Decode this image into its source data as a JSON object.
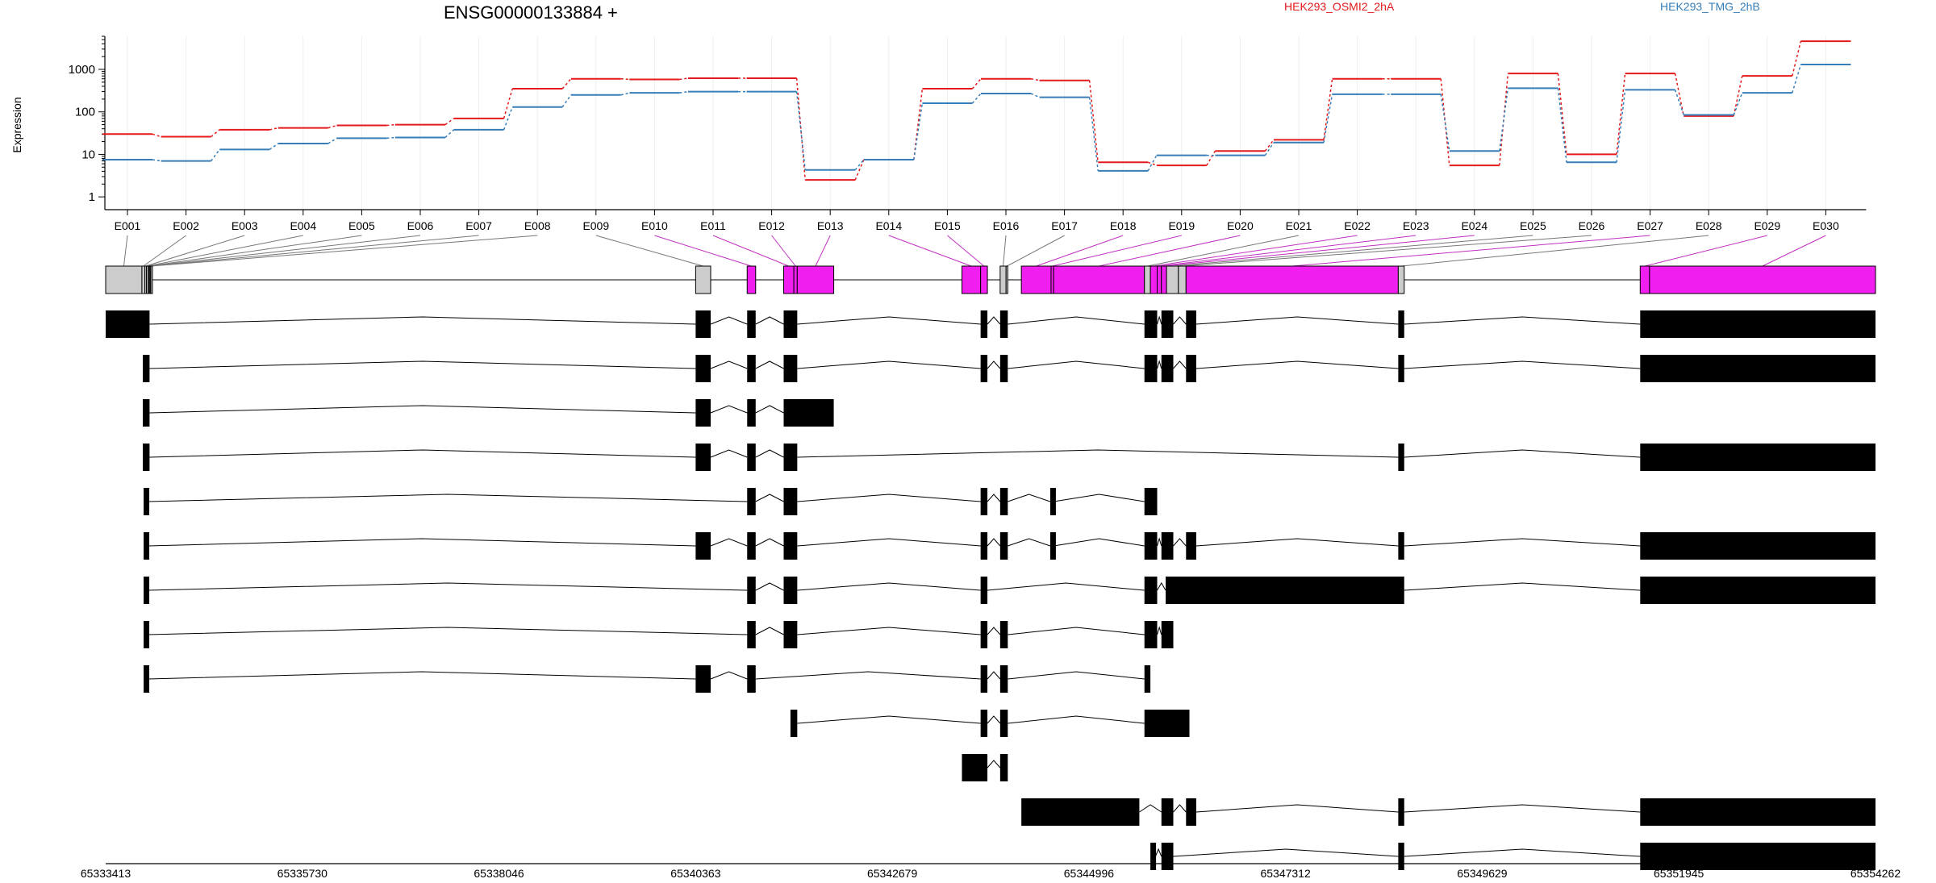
{
  "chart_data": {
    "type": "line",
    "title": "ENSG00000133884 +",
    "ylabel": "Expression",
    "yscale": "log",
    "ylim": [
      0.5,
      6000
    ],
    "yticks": [
      1,
      10,
      100,
      1000
    ],
    "ytick_labels": [
      "1",
      "10",
      "100",
      "1000"
    ],
    "grid": true,
    "legend_placement": "top-right",
    "exons": [
      "E001",
      "E002",
      "E003",
      "E004",
      "E005",
      "E006",
      "E007",
      "E008",
      "E009",
      "E010",
      "E011",
      "E012",
      "E013",
      "E014",
      "E015",
      "E016",
      "E017",
      "E018",
      "E019",
      "E020",
      "E021",
      "E022",
      "E023",
      "E024",
      "E025",
      "E026",
      "E027",
      "E028",
      "E029",
      "E030"
    ],
    "series": [
      {
        "name": "HEK293_OSMI2_2hA",
        "color": "#e41a1c",
        "values": [
          30,
          26,
          38,
          42,
          48,
          50,
          70,
          350,
          600,
          580,
          620,
          620,
          2.5,
          7.5,
          350,
          600,
          550,
          6.5,
          5.5,
          12,
          22,
          600,
          600,
          5.5,
          800,
          10,
          800,
          80,
          700,
          4600
        ]
      },
      {
        "name": "HEK293_TMG_2hB",
        "color": "#377eb8",
        "values": [
          7.5,
          7,
          13,
          18,
          24,
          25,
          38,
          130,
          250,
          280,
          300,
          300,
          4.3,
          7.5,
          160,
          270,
          220,
          4.1,
          9.5,
          9.5,
          19,
          260,
          260,
          12,
          360,
          6.5,
          330,
          85,
          280,
          1300
        ]
      }
    ],
    "genome_axis": {
      "range": [
        65333413,
        65354262
      ],
      "tick_labels": [
        "65333413",
        "65335730",
        "65338046",
        "65340363",
        "65342679",
        "65344996",
        "65347312",
        "65349629",
        "65351945",
        "65354262"
      ]
    },
    "gene_model": {
      "exons": [
        {
          "id": "E001",
          "start": 65333413,
          "end": 65333840,
          "sig": false
        },
        {
          "id": "E002",
          "start": 65333840,
          "end": 65333875,
          "sig": false
        },
        {
          "id": "E003",
          "start": 65333875,
          "end": 65333893,
          "sig": false
        },
        {
          "id": "E004",
          "start": 65333893,
          "end": 65333913,
          "sig": false
        },
        {
          "id": "E005",
          "start": 65333913,
          "end": 65333925,
          "sig": false
        },
        {
          "id": "E006",
          "start": 65333925,
          "end": 65333935,
          "sig": false
        },
        {
          "id": "E007",
          "start": 65333935,
          "end": 65333945,
          "sig": false
        },
        {
          "id": "E008",
          "start": 65333945,
          "end": 65333955,
          "sig": false
        },
        {
          "id": "E009",
          "start": 65340363,
          "end": 65340540,
          "sig": false
        },
        {
          "id": "E010",
          "start": 65340970,
          "end": 65341070,
          "sig": true
        },
        {
          "id": "E011",
          "start": 65341400,
          "end": 65341520,
          "sig": true
        },
        {
          "id": "E012",
          "start": 65341520,
          "end": 65341560,
          "sig": true
        },
        {
          "id": "E013",
          "start": 65341560,
          "end": 65341990,
          "sig": true
        },
        {
          "id": "E014",
          "start": 65343500,
          "end": 65343720,
          "sig": true
        },
        {
          "id": "E015",
          "start": 65343720,
          "end": 65343800,
          "sig": true
        },
        {
          "id": "E016",
          "start": 65343950,
          "end": 65344020,
          "sig": false
        },
        {
          "id": "E017",
          "start": 65344020,
          "end": 65344040,
          "sig": false
        },
        {
          "id": "E018",
          "start": 65344200,
          "end": 65344550,
          "sig": true
        },
        {
          "id": "E019",
          "start": 65344550,
          "end": 65344580,
          "sig": true
        },
        {
          "id": "E020",
          "start": 65344580,
          "end": 65345650,
          "sig": true
        },
        {
          "id": "E021",
          "start": 65345650,
          "end": 65345720,
          "sig": false
        },
        {
          "id": "E022",
          "start": 65345720,
          "end": 65345800,
          "sig": true
        },
        {
          "id": "E023",
          "start": 65345800,
          "end": 65345850,
          "sig": true
        },
        {
          "id": "E024",
          "start": 65345850,
          "end": 65345910,
          "sig": true
        },
        {
          "id": "E025",
          "start": 65345910,
          "end": 65346050,
          "sig": false
        },
        {
          "id": "E026",
          "start": 65346050,
          "end": 65346140,
          "sig": false
        },
        {
          "id": "E027",
          "start": 65346140,
          "end": 65348640,
          "sig": true
        },
        {
          "id": "E028",
          "start": 65348640,
          "end": 65348710,
          "sig": false
        },
        {
          "id": "E029",
          "start": 65351490,
          "end": 65351600,
          "sig": true
        },
        {
          "id": "E030",
          "start": 65351600,
          "end": 65354262,
          "sig": true
        }
      ],
      "transcripts": [
        [
          [
            65333413,
            65333930
          ],
          [
            65340363,
            65340540
          ],
          [
            65340970,
            65341070
          ],
          [
            65341400,
            65341560
          ],
          [
            65343720,
            65343800
          ],
          [
            65343950,
            65344040
          ],
          [
            65345650,
            65345800
          ],
          [
            65345850,
            65345990
          ],
          [
            65346140,
            65346260
          ],
          [
            65348640,
            65348710
          ],
          [
            65351490,
            65354262
          ]
        ],
        [
          [
            65333850,
            65333930
          ],
          [
            65340363,
            65340540
          ],
          [
            65340970,
            65341070
          ],
          [
            65341400,
            65341560
          ],
          [
            65343720,
            65343800
          ],
          [
            65343950,
            65344040
          ],
          [
            65345650,
            65345800
          ],
          [
            65345850,
            65345990
          ],
          [
            65346140,
            65346260
          ],
          [
            65348640,
            65348710
          ],
          [
            65351490,
            65354262
          ]
        ],
        [
          [
            65333850,
            65333930
          ],
          [
            65340363,
            65340540
          ],
          [
            65340970,
            65341070
          ],
          [
            65341400,
            65341990
          ]
        ],
        [
          [
            65333850,
            65333930
          ],
          [
            65340363,
            65340540
          ],
          [
            65340970,
            65341070
          ],
          [
            65341400,
            65341560
          ],
          [
            65348640,
            65348710
          ],
          [
            65351490,
            65354262
          ]
        ],
        [
          [
            65333860,
            65333910
          ],
          [
            65340970,
            65341070
          ],
          [
            65341400,
            65341560
          ],
          [
            65343720,
            65343800
          ],
          [
            65343950,
            65344040
          ],
          [
            65344540,
            65344580
          ],
          [
            65345650,
            65345800
          ]
        ],
        [
          [
            65333860,
            65333910
          ],
          [
            65340363,
            65340540
          ],
          [
            65340970,
            65341070
          ],
          [
            65341400,
            65341560
          ],
          [
            65343720,
            65343800
          ],
          [
            65343950,
            65344040
          ],
          [
            65344540,
            65344580
          ],
          [
            65345650,
            65345800
          ],
          [
            65345850,
            65345990
          ],
          [
            65346140,
            65346260
          ],
          [
            65348640,
            65348710
          ],
          [
            65351490,
            65354262
          ]
        ],
        [
          [
            65333860,
            65333910
          ],
          [
            65340970,
            65341070
          ],
          [
            65341400,
            65341560
          ],
          [
            65343720,
            65343800
          ],
          [
            65345650,
            65345800
          ],
          [
            65345900,
            65348710
          ],
          [
            65351490,
            65354262
          ]
        ],
        [
          [
            65333860,
            65333910
          ],
          [
            65340970,
            65341070
          ],
          [
            65341400,
            65341560
          ],
          [
            65343720,
            65343800
          ],
          [
            65343950,
            65344040
          ],
          [
            65345650,
            65345800
          ],
          [
            65345850,
            65345990
          ]
        ],
        [
          [
            65333860,
            65333910
          ],
          [
            65340363,
            65340540
          ],
          [
            65340970,
            65341070
          ],
          [
            65343720,
            65343800
          ],
          [
            65343950,
            65344040
          ],
          [
            65345650,
            65345720
          ]
        ],
        [
          [
            65341480,
            65341560
          ],
          [
            65343720,
            65343800
          ],
          [
            65343950,
            65344040
          ],
          [
            65345650,
            65346180
          ]
        ],
        [
          [
            65343500,
            65343800
          ],
          [
            65343950,
            65344040
          ]
        ],
        [
          [
            65344200,
            65345590
          ],
          [
            65345850,
            65345990
          ],
          [
            65346140,
            65346260
          ],
          [
            65348640,
            65348710
          ],
          [
            65351490,
            65354262
          ]
        ],
        [
          [
            65345720,
            65345780
          ],
          [
            65345850,
            65345990
          ],
          [
            65348640,
            65348710
          ],
          [
            65351490,
            65354262
          ]
        ]
      ]
    }
  }
}
